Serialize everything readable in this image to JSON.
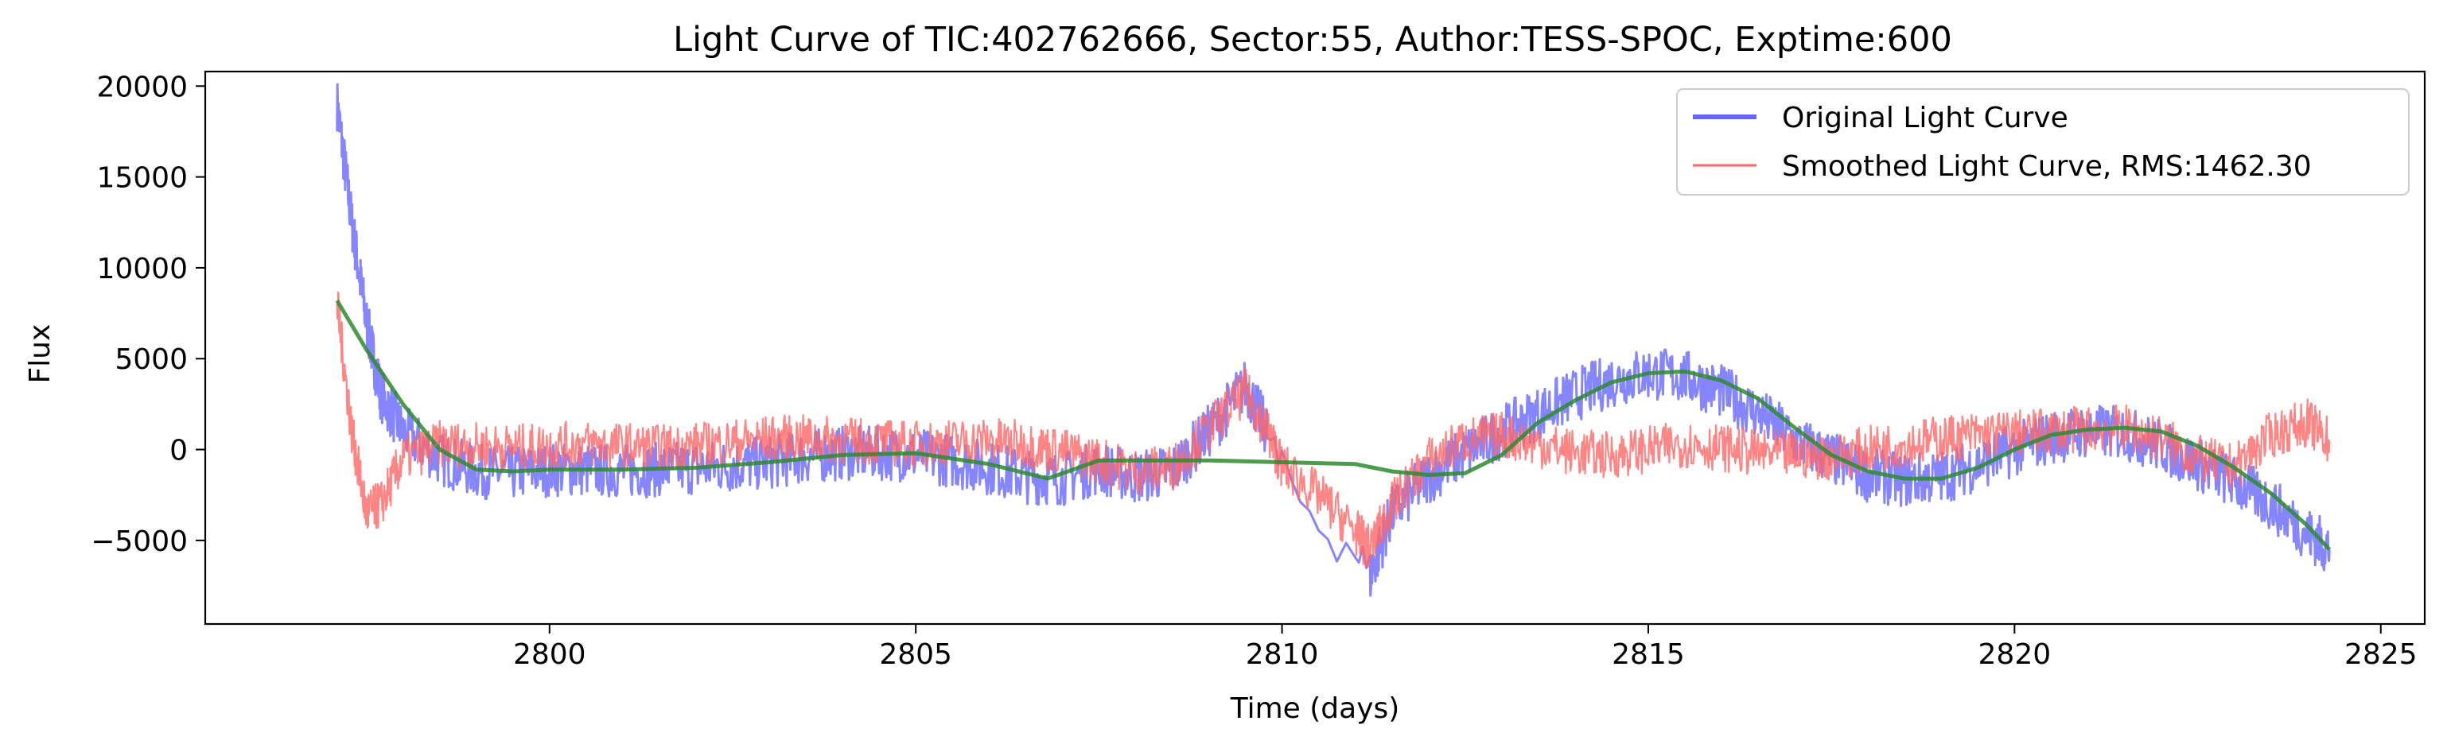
{
  "chart_data": {
    "type": "line",
    "title": "Light Curve of TIC:402762666, Sector:55, Author:TESS-SPOC, Exptime:600",
    "xlabel": "Time (days)",
    "ylabel": "Flux",
    "xlim": [
      2795.3,
      2825.6
    ],
    "ylim": [
      -9600,
      20800
    ],
    "xticks": [
      2800,
      2805,
      2810,
      2815,
      2820,
      2825
    ],
    "xtick_labels": [
      "2800",
      "2805",
      "2810",
      "2815",
      "2820",
      "2825"
    ],
    "yticks": [
      -5000,
      0,
      5000,
      10000,
      15000,
      20000
    ],
    "ytick_labels": [
      "−5000",
      "0",
      "5000",
      "10000",
      "15000",
      "20000"
    ],
    "grid": false,
    "legend_position": "top-right",
    "series": [
      {
        "name": "Original Light Curve",
        "color": "#6666ff",
        "x": [
          2797.1,
          2797.3,
          2797.5,
          2797.7,
          2798.0,
          2798.5,
          2799.0,
          2799.5,
          2800.0,
          2800.5,
          2801.0,
          2801.5,
          2802.0,
          2802.5,
          2803.0,
          2803.5,
          2804.0,
          2804.5,
          2805.0,
          2805.5,
          2806.0,
          2806.5,
          2807.0,
          2807.5,
          2808.0,
          2808.5,
          2809.0,
          2809.5,
          2809.8,
          2810.0,
          2810.5,
          2811.0,
          2811.2,
          2811.5,
          2812.0,
          2812.5,
          2813.0,
          2813.5,
          2814.0,
          2814.5,
          2815.0,
          2815.5,
          2816.0,
          2816.5,
          2817.0,
          2817.5,
          2818.0,
          2818.5,
          2819.0,
          2819.5,
          2820.0,
          2820.5,
          2821.0,
          2821.5,
          2822.0,
          2822.5,
          2823.0,
          2823.5,
          2824.0,
          2824.3
        ],
        "y": [
          19000,
          12500,
          7000,
          3000,
          1000,
          -500,
          -1200,
          -1300,
          -1100,
          -1100,
          -1200,
          -1100,
          -1000,
          -900,
          -700,
          -400,
          -200,
          -200,
          -300,
          -600,
          -1000,
          -1500,
          -1600,
          -1000,
          -1500,
          -1200,
          1000,
          3500,
          1000,
          -1500,
          -4000,
          -5500,
          -7000,
          -3500,
          -1500,
          -200,
          1000,
          2000,
          3000,
          3800,
          4200,
          4000,
          3200,
          2000,
          500,
          -500,
          -1400,
          -1700,
          -1500,
          -800,
          0,
          700,
          1000,
          900,
          200,
          -800,
          -1800,
          -3000,
          -4600,
          -5500
        ]
      },
      {
        "name": "Smoothed Light Curve, RMS:1462.30",
        "color": "#ff6666",
        "x": [
          2797.1,
          2797.3,
          2797.5,
          2797.7,
          2798.0,
          2798.5,
          2799.0,
          2799.5,
          2800.0,
          2800.5,
          2801.0,
          2801.5,
          2802.0,
          2802.5,
          2803.0,
          2803.5,
          2804.0,
          2804.5,
          2805.0,
          2805.5,
          2806.0,
          2806.5,
          2807.0,
          2807.5,
          2808.0,
          2808.5,
          2809.0,
          2809.5,
          2809.8,
          2810.0,
          2810.5,
          2811.0,
          2811.2,
          2811.5,
          2812.0,
          2812.5,
          2813.0,
          2813.5,
          2814.0,
          2814.5,
          2815.0,
          2815.5,
          2816.0,
          2816.5,
          2817.0,
          2817.5,
          2818.0,
          2818.5,
          2819.0,
          2819.5,
          2820.0,
          2820.5,
          2821.0,
          2821.5,
          2822.0,
          2822.5,
          2823.0,
          2823.5,
          2824.0,
          2824.3
        ],
        "y": [
          8000,
          1000,
          -3500,
          -3000,
          -500,
          300,
          200,
          100,
          200,
          300,
          200,
          100,
          200,
          400,
          600,
          600,
          500,
          400,
          300,
          400,
          500,
          300,
          -100,
          -600,
          -1200,
          -1000,
          1100,
          3200,
          1000,
          -900,
          -2500,
          -4500,
          -5500,
          -3000,
          -600,
          500,
          800,
          300,
          -200,
          -300,
          0,
          300,
          100,
          -200,
          -300,
          -400,
          0,
          300,
          600,
          800,
          900,
          1000,
          1100,
          1200,
          600,
          -500,
          -1000,
          800,
          1500,
          500
        ]
      },
      {
        "name": "",
        "color": "#2e8b2e",
        "x": [
          2797.1,
          2797.5,
          2798.0,
          2798.5,
          2799.0,
          2799.5,
          2800.0,
          2801.0,
          2802.0,
          2803.0,
          2804.0,
          2805.0,
          2806.0,
          2806.8,
          2807.5,
          2808.0,
          2809.0,
          2810.0,
          2811.0,
          2811.5,
          2812.0,
          2812.5,
          2813.0,
          2813.5,
          2814.0,
          2814.5,
          2815.0,
          2815.5,
          2816.0,
          2816.5,
          2817.0,
          2817.5,
          2818.0,
          2818.5,
          2819.0,
          2819.5,
          2820.0,
          2820.5,
          2821.0,
          2821.5,
          2822.0,
          2822.5,
          2823.0,
          2823.5,
          2824.0,
          2824.3
        ],
        "y": [
          8200,
          5500,
          2500,
          0,
          -1100,
          -1200,
          -1100,
          -1100,
          -1000,
          -700,
          -300,
          -200,
          -800,
          -1600,
          -600,
          -600,
          -600,
          -700,
          -800,
          -1200,
          -1400,
          -1300,
          -300,
          1500,
          2700,
          3700,
          4200,
          4300,
          3800,
          2800,
          1200,
          -300,
          -1200,
          -1600,
          -1600,
          -1000,
          0,
          800,
          1100,
          1200,
          1000,
          200,
          -1000,
          -2400,
          -4200,
          -5500
        ]
      }
    ],
    "legend": [
      {
        "label": "Original Light Curve",
        "color": "#6666ff"
      },
      {
        "label": "Smoothed Light Curve, RMS:1462.30",
        "color": "#ff6666"
      }
    ]
  }
}
